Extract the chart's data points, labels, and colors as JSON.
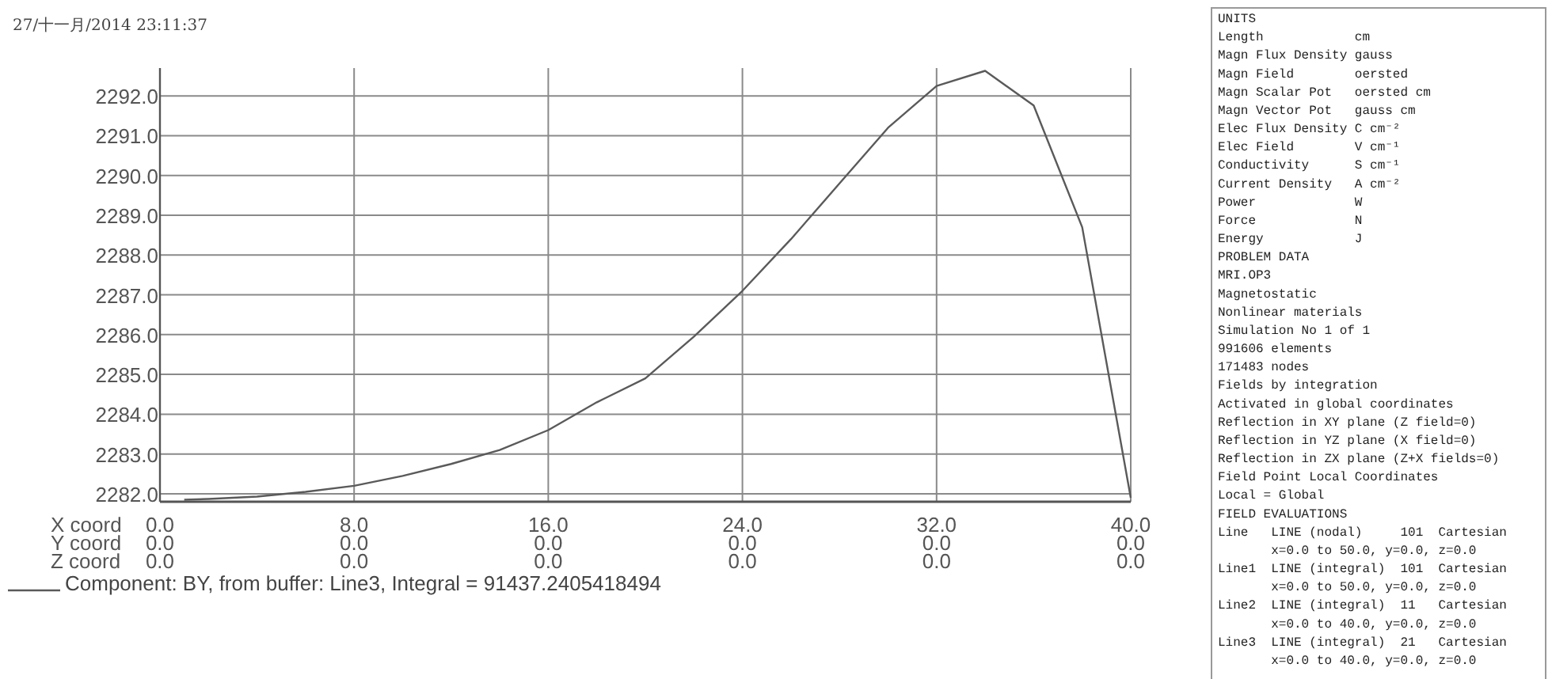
{
  "chart_data": {
    "type": "line",
    "title": "27/十一月/2014 23:11:37",
    "xlabel": "X coord",
    "x": [
      1,
      2,
      4,
      6,
      8,
      10,
      12,
      14,
      16,
      18,
      20,
      22,
      24,
      26,
      28,
      30,
      32,
      34,
      36,
      38,
      40
    ],
    "series": [
      {
        "name": "Component: BY, from buffer: Line3, Integral = 91437.2405418494",
        "color": "#5a5a5a",
        "values": [
          2281.85,
          2281.87,
          2281.93,
          2282.05,
          2282.2,
          2282.45,
          2282.75,
          2283.1,
          2283.6,
          2284.3,
          2284.9,
          2285.95,
          2287.1,
          2288.4,
          2289.8,
          2291.2,
          2292.25,
          2292.63,
          2291.76,
          2288.7,
          2281.9
        ]
      }
    ],
    "xlim": [
      0,
      40
    ],
    "ylim": [
      2281.8,
      2292.7
    ],
    "xticks": [
      {
        "value": 0,
        "label": "0.0"
      },
      {
        "value": 8,
        "label": "8.0"
      },
      {
        "value": 16,
        "label": "16.0"
      },
      {
        "value": 24,
        "label": "24.0"
      },
      {
        "value": 32,
        "label": "32.0"
      },
      {
        "value": 40,
        "label": "40.0"
      }
    ],
    "yticks": [
      {
        "value": 2282,
        "label": "2282.0"
      },
      {
        "value": 2283,
        "label": "2283.0"
      },
      {
        "value": 2284,
        "label": "2284.0"
      },
      {
        "value": 2285,
        "label": "2285.0"
      },
      {
        "value": 2286,
        "label": "2286.0"
      },
      {
        "value": 2287,
        "label": "2287.0"
      },
      {
        "value": 2288,
        "label": "2288.0"
      },
      {
        "value": 2289,
        "label": "2289.0"
      },
      {
        "value": 2290,
        "label": "2290.0"
      },
      {
        "value": 2291,
        "label": "2291.0"
      },
      {
        "value": 2292,
        "label": "2292.0"
      }
    ],
    "grid": true,
    "legend": "bottom left",
    "marker": "none",
    "line_style": "solid",
    "annotations": [
      "Y coord",
      "0.0",
      "0.0",
      "0.0",
      "0.0",
      "0.0",
      "0.0",
      "Z coord",
      "0.0",
      "0.0",
      "0.0",
      "0.0",
      "0.0",
      "0.0",
      "UNITS",
      "Length            cm",
      "Magn Flux Density gauss",
      "Magn Field        oersted",
      "Magn Scalar Pot   oersted cm",
      "Magn Vector Pot   gauss cm",
      "Elec Flux Density C cm⁻²",
      "Elec Field        V cm⁻¹",
      "Conductivity      S cm⁻¹",
      "Current Density   A cm⁻²",
      "Power             W",
      "Force             N",
      "Energy            J",
      "PROBLEM DATA",
      "MRI.OP3",
      "Magnetostatic",
      "Nonlinear materials",
      "Simulation No 1 of 1",
      "991606 elements",
      "171483 nodes",
      "Fields by integration",
      "Activated in global coordinates",
      "Reflection in XY plane (Z field=0)",
      "Reflection in YZ plane (X field=0)",
      "Reflection in ZX plane (Z+X fields=0)",
      "Field Point Local Coordinates",
      "Local = Global",
      "FIELD EVALUATIONS",
      "Line   LINE (nodal)     101  Cartesian",
      "       x=0.0 to 50.0, y=0.0, z=0.0",
      "Line1  LINE (integral)  101  Cartesian",
      "       x=0.0 to 50.0, y=0.0, z=0.0",
      "Line2  LINE (integral)  11   Cartesian",
      "       x=0.0 to 40.0, y=0.0, z=0.0",
      "Line3  LINE (integral)  21   Cartesian",
      "       x=0.0 to 40.0, y=0.0, z=0.0"
    ]
  }
}
